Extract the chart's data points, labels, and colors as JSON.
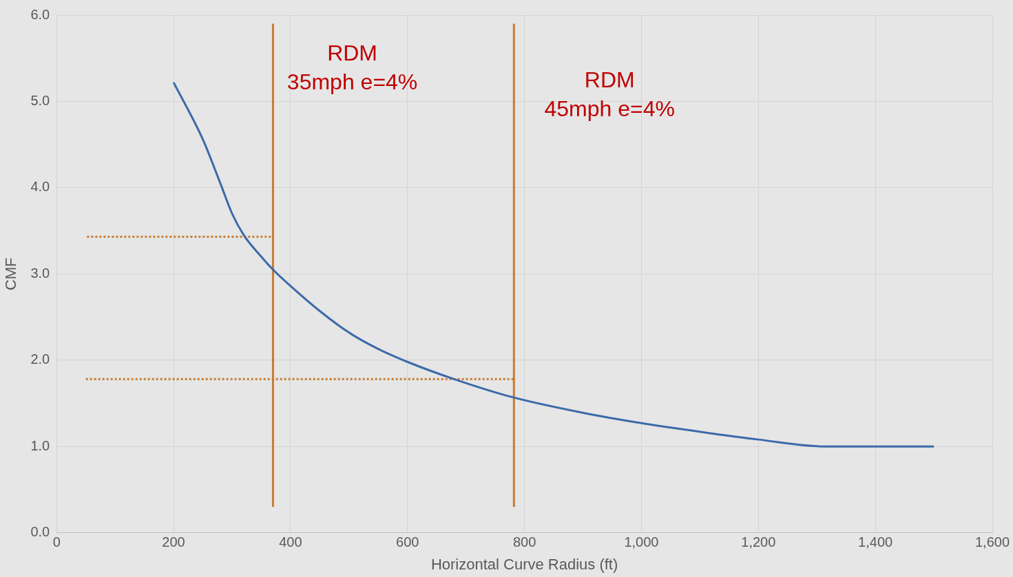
{
  "chart_data": {
    "type": "line",
    "xlabel": "Horizontal Curve Radius (ft)",
    "ylabel": "CMF",
    "xlim": [
      0,
      1600
    ],
    "xticks": [
      0,
      200,
      400,
      600,
      800,
      {
        "value": 1000,
        "label": "1,000"
      },
      {
        "value": 1200,
        "label": "1,200"
      },
      {
        "value": 1400,
        "label": "1,400"
      },
      {
        "value": 1600,
        "label": "1,600"
      }
    ],
    "ylim": [
      0,
      6
    ],
    "yticks": [
      {
        "value": 0,
        "label": "0.0"
      },
      {
        "value": 1,
        "label": "1.0"
      },
      {
        "value": 2,
        "label": "2.0"
      },
      {
        "value": 3,
        "label": "3.0"
      },
      {
        "value": 4,
        "label": "4.0"
      },
      {
        "value": 5,
        "label": "5.0"
      },
      {
        "value": 6,
        "label": "6.0"
      }
    ],
    "grid": true,
    "marker": "none",
    "series": [
      {
        "color": "#3b6aa8",
        "line_style": "solid",
        "x": [
          200,
          250,
          280,
          300,
          320,
          350,
          370,
          400,
          450,
          500,
          550,
          600,
          680,
          780,
          900,
          1000,
          1100,
          1200,
          1315,
          1500
        ],
        "values": [
          5.22,
          4.56,
          4.05,
          3.7,
          3.45,
          3.2,
          3.05,
          2.86,
          2.57,
          2.32,
          2.13,
          1.98,
          1.78,
          1.57,
          1.39,
          1.27,
          1.17,
          1.08,
          1.0,
          1.0
        ]
      },
      {
        "color": "#c87a32",
        "line_style": "solid",
        "x": [
          370,
          370
        ],
        "values": [
          0.3,
          5.9
        ]
      },
      {
        "color": "#c87a32",
        "line_style": "solid",
        "x": [
          782,
          782
        ],
        "values": [
          0.3,
          5.9
        ]
      },
      {
        "color": "#c87a32",
        "line_style": "dotted",
        "x": [
          52,
          370
        ],
        "values": [
          3.43,
          3.43
        ]
      },
      {
        "color": "#c87a32",
        "line_style": "dotted",
        "x": [
          50,
          782
        ],
        "values": [
          1.78,
          1.78
        ]
      }
    ],
    "annotations": [
      "RDM\n35mph e=4%",
      "RDM\n45mph e=4%"
    ]
  }
}
